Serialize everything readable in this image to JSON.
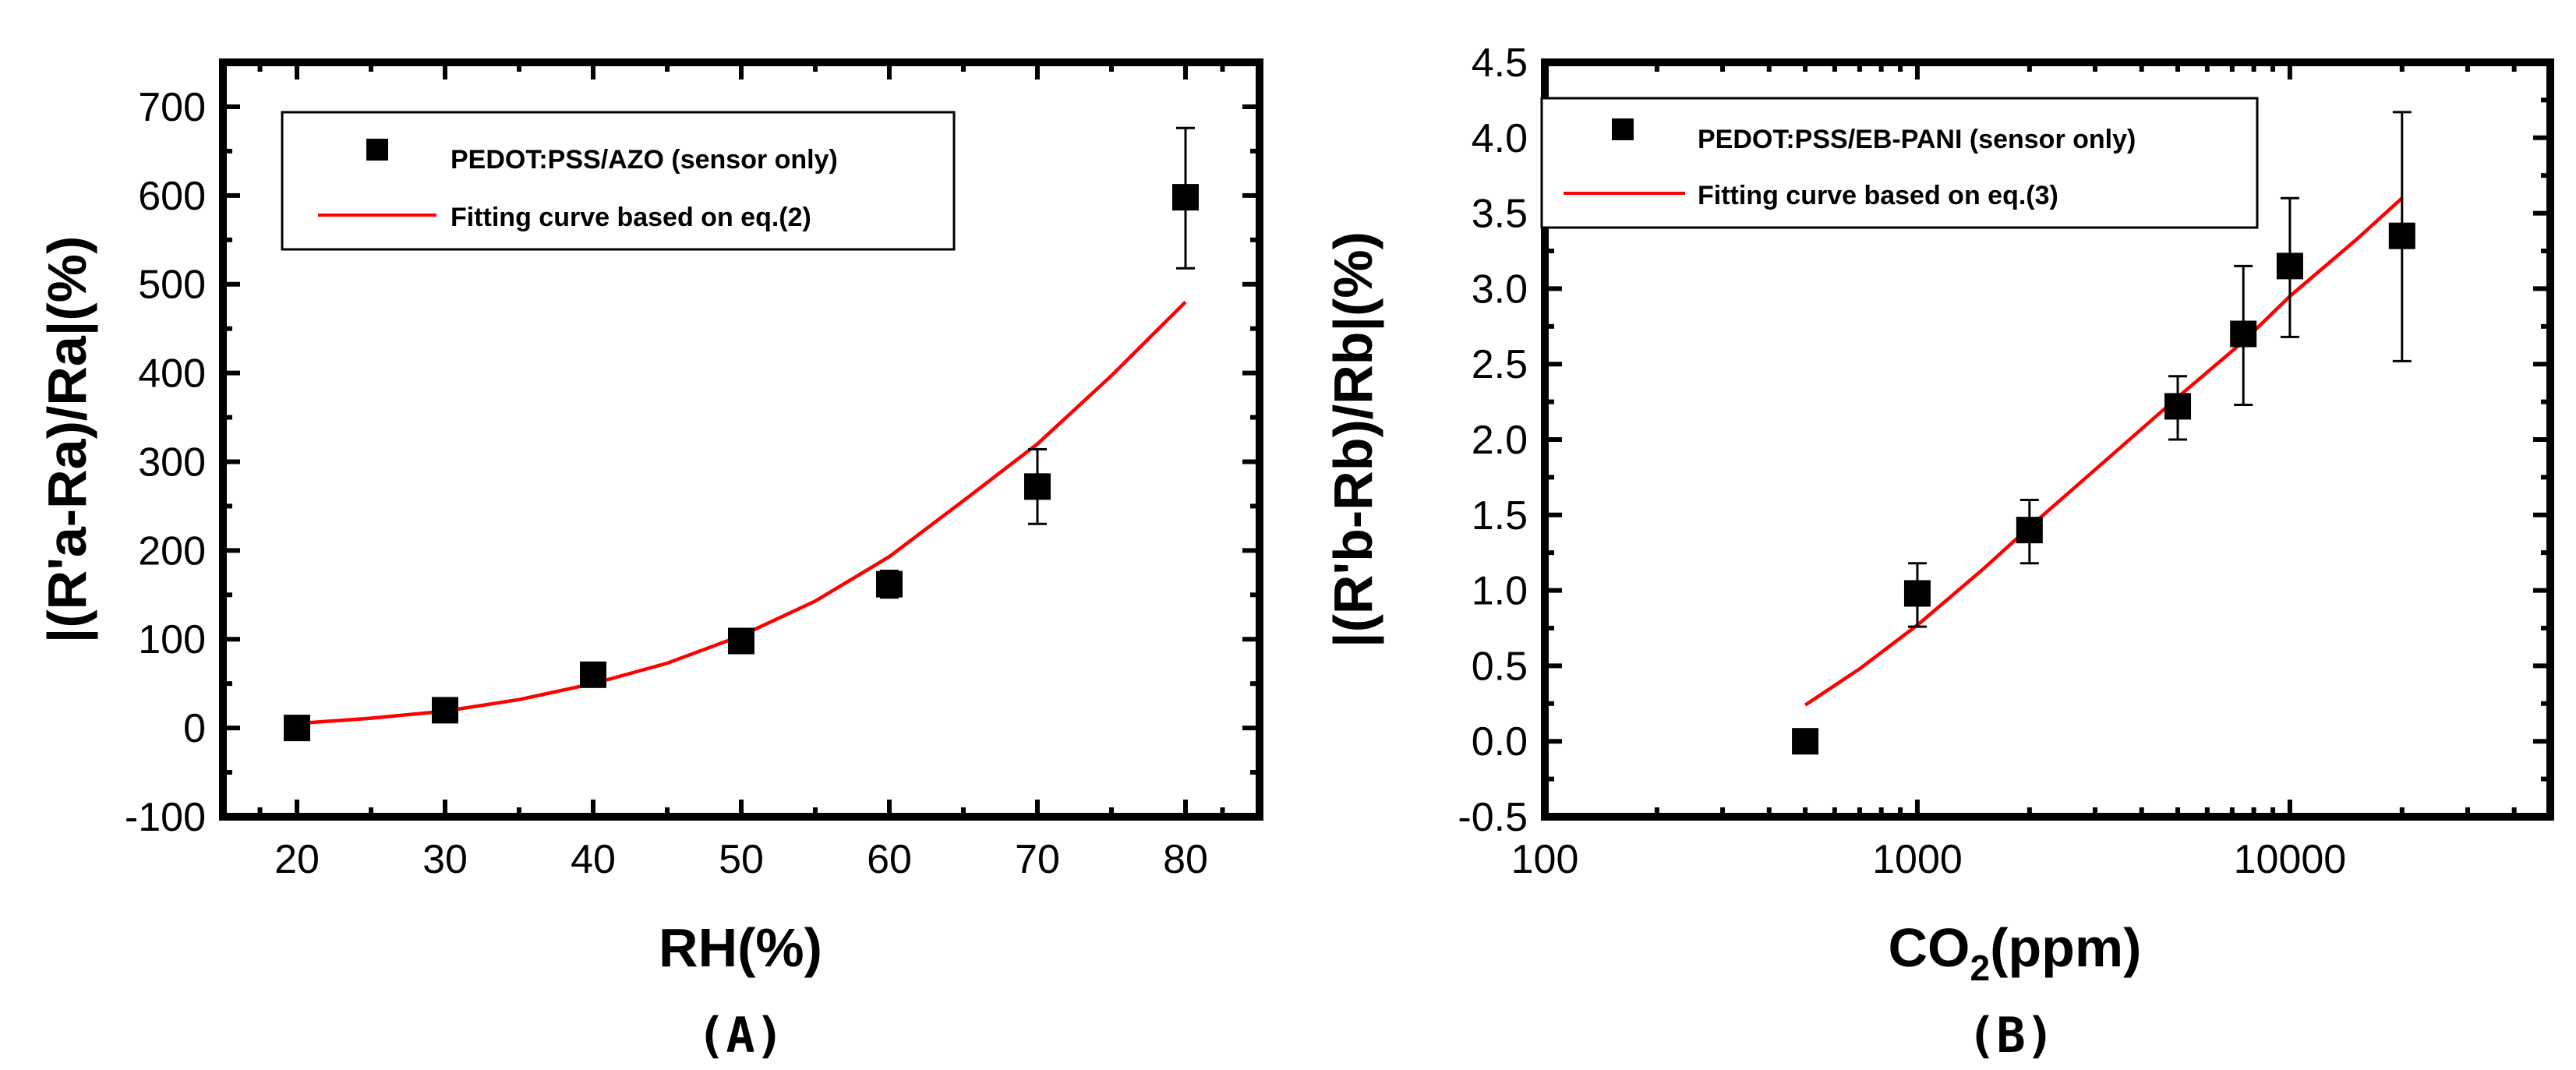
{
  "chart_data": [
    {
      "type": "scatter",
      "panel_label": "(A)",
      "xlabel": "RH(%)",
      "ylabel": "|(R'a-Ra)/Ra|(%)",
      "xlim": [
        15,
        85
      ],
      "ylim": [
        -100,
        750
      ],
      "xscale": "linear",
      "xticks": [
        20,
        30,
        40,
        50,
        60,
        70,
        80
      ],
      "yticks": [
        -100,
        0,
        100,
        200,
        300,
        400,
        500,
        600,
        700
      ],
      "legend_position": "top-left",
      "series": [
        {
          "name": "PEDOT:PSS/AZO (sensor only)",
          "kind": "points",
          "color": "#000000",
          "x": [
            20,
            30,
            40,
            50,
            60,
            70,
            80
          ],
          "y": [
            0,
            20,
            60,
            98,
            162,
            272,
            598
          ],
          "err_low": [
            0,
            12,
            10,
            12,
            15,
            42,
            80
          ],
          "err_high": [
            0,
            12,
            10,
            12,
            15,
            42,
            78
          ]
        },
        {
          "name": "Fitting curve based on eq.(2)",
          "kind": "line",
          "color": "#ff0000",
          "x": [
            20,
            25,
            30,
            35,
            40,
            45,
            50,
            55,
            60,
            65,
            70,
            75,
            80
          ],
          "y": [
            5,
            11,
            19,
            32,
            50,
            73,
            104,
            143,
            193,
            256,
            320,
            397,
            480
          ]
        }
      ]
    },
    {
      "type": "scatter",
      "panel_label": "(B)",
      "xlabel_main": "CO",
      "xlabel_sub": "2",
      "xlabel_tail": "(ppm)",
      "ylabel": "|(R'b-Rb)/Rb|(%)",
      "xlim": [
        100,
        50000
      ],
      "ylim": [
        -0.5,
        4.5
      ],
      "xscale": "log",
      "xticks": [
        100,
        1000,
        10000
      ],
      "xtick_labels": [
        "100",
        "1000",
        "10000"
      ],
      "yticks": [
        -0.5,
        0.0,
        0.5,
        1.0,
        1.5,
        2.0,
        2.5,
        3.0,
        3.5,
        4.0,
        4.5
      ],
      "ytick_labels": [
        "-0.5",
        "0.0",
        "0.5",
        "1.0",
        "1.5",
        "2.0",
        "2.5",
        "3.0",
        "3.5",
        "4.0",
        "4.5"
      ],
      "legend_position": "top-left",
      "series": [
        {
          "name": "PEDOT:PSS/EB-PANI (sensor only)",
          "kind": "points",
          "color": "#000000",
          "x": [
            500,
            1000,
            2000,
            5000,
            7500,
            10000,
            20000
          ],
          "y": [
            0.0,
            0.98,
            1.4,
            2.22,
            2.7,
            3.15,
            3.35
          ],
          "err_low": [
            0,
            0.22,
            0.22,
            0.22,
            0.47,
            0.47,
            0.83
          ],
          "err_high": [
            0,
            0.2,
            0.2,
            0.2,
            0.45,
            0.45,
            0.82
          ]
        },
        {
          "name": "Fitting curve based on eq.(3)",
          "kind": "line",
          "color": "#ff0000",
          "x": [
            500,
            700,
            1000,
            1500,
            2000,
            3000,
            5000,
            7500,
            10000,
            15000,
            20000
          ],
          "y": [
            0.24,
            0.48,
            0.77,
            1.14,
            1.42,
            1.8,
            2.28,
            2.65,
            2.95,
            3.32,
            3.6
          ]
        }
      ]
    }
  ]
}
